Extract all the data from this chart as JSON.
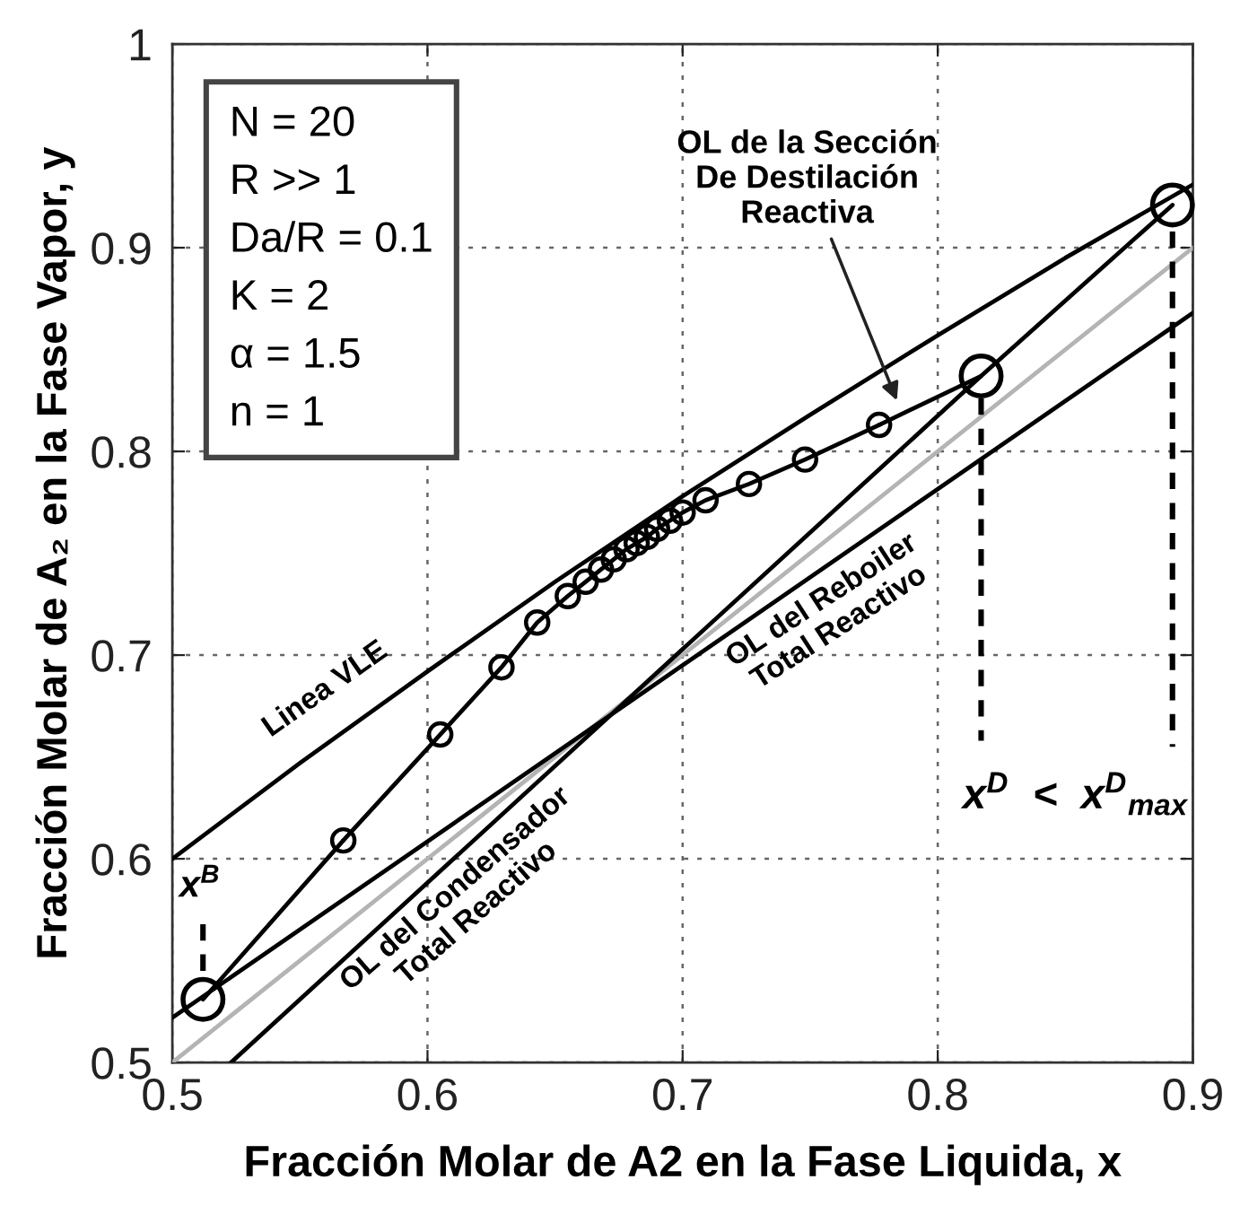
{
  "chart_data": {
    "type": "line",
    "xlabel": "Fracción Molar de A2 en la Fase Liquida, x",
    "ylabel": "Fracción Molar de A₂ en la Fase Vapor, y",
    "xlim": [
      0.5,
      0.9
    ],
    "ylim": [
      0.5,
      1
    ],
    "xticks": [
      0.5,
      0.6,
      0.7,
      0.8,
      0.9
    ],
    "yticks": [
      0.5,
      0.6,
      0.7,
      0.8,
      0.9,
      1
    ],
    "grid": true,
    "annotations": [
      "N = 20\nR >> 1\nDa/R = 0.1\nK = 2\nα = 1.5\nn = 1",
      "Linea VLE",
      "OL del Condensador\nTotal Reactivo",
      "OL del Reboiler\nTotal Reactivo",
      "OL de la Sección\nDe Destilación\nReactiva",
      "x$^{B}$",
      "x$^{D}$  <  x$^{D}$$_{max}$"
    ],
    "series": [
      {
        "color": "#000000",
        "x": [
          0.5,
          0.55,
          0.6,
          0.65,
          0.7,
          0.75,
          0.8,
          0.85,
          0.9
        ],
        "values": [
          0.6,
          0.647,
          0.692,
          0.736,
          0.778,
          0.818,
          0.857,
          0.895,
          0.931
        ]
      },
      {
        "color": "#b4b4b4",
        "x": [
          0.5,
          0.9
        ],
        "values": [
          0.5,
          0.9
        ]
      },
      {
        "color": "#000000",
        "x": [
          0.5,
          0.9
        ],
        "values": [
          0.522,
          0.868
        ]
      },
      {
        "color": "#000000",
        "x": [
          0.523,
          0.817
        ],
        "values": [
          0.5,
          0.837
        ]
      },
      {
        "color": "#000000",
        "marker": "circle",
        "x": [
          0.567,
          0.605,
          0.629,
          0.643,
          0.655,
          0.662,
          0.668,
          0.673,
          0.678,
          0.682,
          0.686,
          0.69,
          0.695,
          0.7,
          0.709,
          0.726,
          0.748,
          0.777
        ],
        "values": [
          0.609,
          0.661,
          0.694,
          0.716,
          0.729,
          0.736,
          0.742,
          0.747,
          0.752,
          0.755,
          0.758,
          0.762,
          0.766,
          0.77,
          0.776,
          0.784,
          0.796,
          0.813
        ]
      },
      {
        "color": "#000000",
        "x": [
          0.512,
          0.567
        ],
        "values": [
          0.531,
          0.609
        ]
      },
      {
        "color": "#000000",
        "x": [
          0.777,
          0.817,
          0.892
        ],
        "values": [
          0.813,
          0.837,
          0.921
        ]
      },
      {
        "type": "scatter",
        "color": "#000000",
        "marker": "circle",
        "x": [
          0.512,
          0.817,
          0.892
        ],
        "values": [
          0.531,
          0.837,
          0.921
        ]
      },
      {
        "color": "#000000",
        "line_style": "dashed",
        "x": [
          0.512,
          0.512
        ],
        "values": [
          0.545,
          0.57
        ]
      },
      {
        "color": "#000000",
        "line_style": "dashed",
        "x": [
          0.817,
          0.817
        ],
        "values": [
          0.826,
          0.658
        ]
      },
      {
        "color": "#000000",
        "line_style": "dashed",
        "x": [
          0.892,
          0.892
        ],
        "values": [
          0.908,
          0.655
        ]
      }
    ]
  }
}
